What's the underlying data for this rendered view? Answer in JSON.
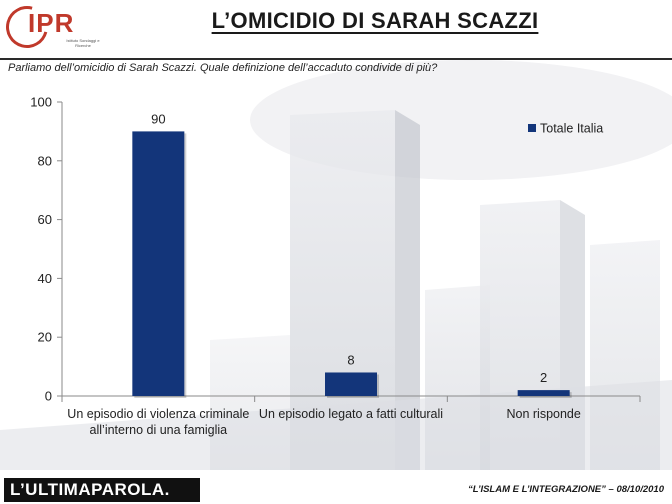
{
  "header": {
    "logo_text": "IPR",
    "logo_subtext": "Istituto Sondaggi e Ricerche",
    "title": "L’OMICIDIO DI SARAH SCAZZI"
  },
  "question": "Parliamo dell’omicidio di Sarah Scazzi. Quale definizione dell’accaduto condivide di più?",
  "chart_data": {
    "type": "bar",
    "categories": [
      [
        "Un episodio di violenza criminale",
        "all’interno di una famiglia"
      ],
      [
        "Un episodio legato a fatti culturali"
      ],
      [
        "Non risponde"
      ]
    ],
    "series": [
      {
        "name": "Totale Italia",
        "values": [
          90,
          8,
          2
        ],
        "color": "#13357a"
      }
    ],
    "yticks": [
      0,
      20,
      40,
      60,
      80,
      100
    ],
    "ylim": [
      0,
      100
    ],
    "grid": false,
    "legend": "top-right"
  },
  "footer": {
    "brand": "L’ULTIMAPAROLA.",
    "note": "“L’ISLAM E L’INTEGRAZIONE” – 08/10/2010"
  }
}
